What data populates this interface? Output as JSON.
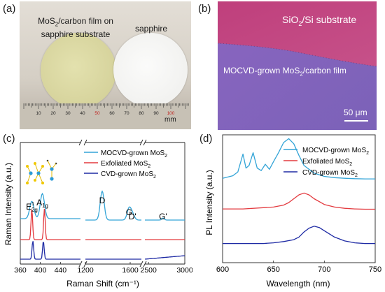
{
  "panel_a": {
    "label": "(a)",
    "left_caption_line1_pre": "MoS",
    "left_caption_line1_sub": "2",
    "left_caption_line1_post": "/carbon film on",
    "left_caption_line2": "sapphire substrate",
    "right_caption": "sapphire",
    "ruler_unit": "mm",
    "ruler_numbers": [
      "10",
      "20",
      "30",
      "40",
      "50",
      "60",
      "70",
      "80",
      "90",
      "100"
    ],
    "colors": {
      "film": "#d8d6a0",
      "sapphire": "#f3f3f1",
      "background": "#d7d1c6",
      "ruler": "#c8c2b6"
    }
  },
  "panel_b": {
    "label": "(b)",
    "top_region_pre": "SiO",
    "top_region_sub": "2",
    "top_region_post": "/Si substrate",
    "bottom_region_pre": "MOCVD-grown MoS",
    "bottom_region_sub": "2",
    "bottom_region_post": "/carbon film",
    "scale_bar": "50 μm",
    "colors": {
      "substrate": "#c1477f",
      "film": "#8867bf"
    }
  },
  "chart_data": [
    {
      "type": "line",
      "panel": "(c)",
      "xlabel": "Raman Shift (cm⁻¹)",
      "ylabel": "Raman Intensity (a.u.)",
      "x_segments": [
        {
          "range": [
            360,
            480
          ],
          "ticks": [
            "360",
            "400",
            "440"
          ]
        },
        {
          "range": [
            1200,
            1700
          ],
          "ticks": [
            "1200",
            "1600"
          ]
        },
        {
          "range": [
            2450,
            3000
          ],
          "ticks": [
            "2500",
            "3000"
          ]
        }
      ],
      "legend_placement": "top-right",
      "peak_labels": [
        {
          "text": "E",
          "sub": "2g",
          "sup": "1",
          "x": 383
        },
        {
          "text": "A",
          "sub": "1g",
          "x": 404
        },
        {
          "text": "D",
          "x": 1350
        },
        {
          "text": "G",
          "x": 1590
        },
        {
          "text": "D'",
          "x": 1620
        },
        {
          "text": "G'",
          "x": 2700
        }
      ],
      "series": [
        {
          "name_pre": "MOCVD-grown MoS",
          "name_sub": "2",
          "color": "#33a4d7",
          "peaks": [
            {
              "x": 383,
              "h": 0.45
            },
            {
              "x": 404,
              "h": 0.65
            },
            {
              "x": 1350,
              "h": 0.75
            },
            {
              "x": 1590,
              "h": 0.3
            },
            {
              "x": 1620,
              "h": 0.15
            },
            {
              "x": 2700,
              "h": 0.05
            }
          ]
        },
        {
          "name_pre": "Exfoliated MoS",
          "name_sub": "2",
          "color": "#e33a3f",
          "peaks": [
            {
              "x": 383,
              "h": 0.8
            },
            {
              "x": 408,
              "h": 0.8
            }
          ]
        },
        {
          "name_pre": "CVD-grown MoS",
          "name_sub": "2",
          "color": "#1e2aa4",
          "peaks": [
            {
              "x": 385,
              "h": 0.75
            },
            {
              "x": 406,
              "h": 0.75
            }
          ]
        }
      ]
    },
    {
      "type": "line",
      "panel": "(d)",
      "xlabel": "Wavelength (nm)",
      "ylabel": "PL Intensity (a.u.)",
      "xlim": [
        600,
        750
      ],
      "xticks": [
        "600",
        "650",
        "700",
        "750"
      ],
      "legend_placement": "top-right",
      "series": [
        {
          "name_pre": "MOCVD-grown MoS",
          "name_sub": "2",
          "color": "#33a4d7",
          "x": [
            600,
            610,
            615,
            620,
            623,
            626,
            630,
            634,
            638,
            642,
            646,
            650,
            655,
            660,
            665,
            670,
            675,
            680,
            690,
            700,
            710,
            720,
            730,
            740,
            750
          ],
          "y": [
            0.66,
            0.68,
            0.71,
            0.85,
            0.74,
            0.76,
            0.86,
            0.74,
            0.72,
            0.77,
            0.73,
            0.79,
            0.86,
            0.94,
            0.97,
            0.93,
            0.84,
            0.76,
            0.7,
            0.675,
            0.665,
            0.66,
            0.657,
            0.655,
            0.655
          ]
        },
        {
          "name_pre": "Exfoliated MoS",
          "name_sub": "2",
          "color": "#e33a3f",
          "x": [
            600,
            620,
            640,
            650,
            660,
            665,
            670,
            675,
            680,
            685,
            690,
            700,
            710,
            720,
            730,
            740,
            750
          ],
          "y": [
            0.42,
            0.42,
            0.43,
            0.435,
            0.45,
            0.47,
            0.5,
            0.53,
            0.545,
            0.53,
            0.5,
            0.455,
            0.435,
            0.425,
            0.42,
            0.418,
            0.418
          ]
        },
        {
          "name_pre": "CVD-grown MoS",
          "name_sub": "2",
          "color": "#1e2aa4",
          "x": [
            600,
            620,
            640,
            650,
            660,
            670,
            675,
            680,
            685,
            690,
            695,
            700,
            710,
            720,
            730,
            740,
            750
          ],
          "y": [
            0.15,
            0.15,
            0.15,
            0.155,
            0.165,
            0.18,
            0.2,
            0.24,
            0.27,
            0.285,
            0.275,
            0.25,
            0.2,
            0.17,
            0.155,
            0.15,
            0.15
          ]
        }
      ]
    }
  ]
}
